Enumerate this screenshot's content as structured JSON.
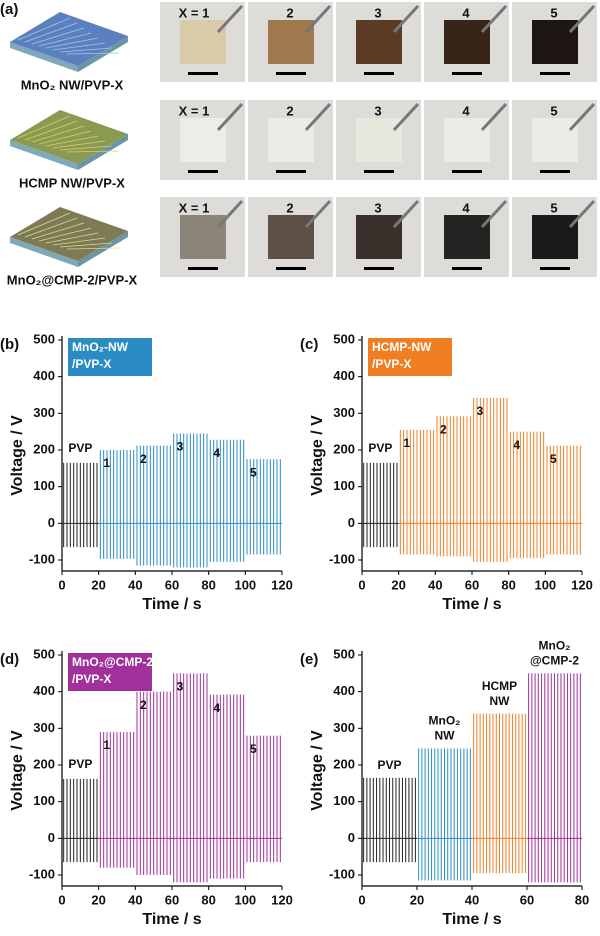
{
  "panel_a": {
    "label": "(a)",
    "rows": [
      {
        "name": "MnO₂ NW/PVP-X",
        "samples": [
          "X = 1",
          "2",
          "3",
          "4",
          "5"
        ]
      },
      {
        "name": "HCMP NW/PVP-X",
        "samples": [
          "X = 1",
          "2",
          "3",
          "4",
          "5"
        ]
      },
      {
        "name": "MnO₂@CMP-2/PVP-X",
        "samples": [
          "X = 1",
          "2",
          "3",
          "4",
          "5"
        ]
      }
    ]
  },
  "chart_data": [
    {
      "type": "pulse",
      "panel": "(b)",
      "legend": [
        "MnO₂-NW",
        "/PVP-X"
      ],
      "legend_color": "#2b8cc4",
      "xlabel": "Time / s",
      "ylabel": "Voltage / V",
      "xlim": [
        0,
        120
      ],
      "xticks": [
        0,
        20,
        40,
        60,
        80,
        100,
        120
      ],
      "ylim": [
        -130,
        500
      ],
      "yticks": [
        -100,
        0,
        100,
        200,
        300,
        400,
        500
      ],
      "series": [
        {
          "label": [
            "PVP"
          ],
          "color": "#222222",
          "x": [
            0,
            20
          ],
          "values": [
            165,
            -65
          ]
        },
        {
          "label": [
            "1"
          ],
          "color": "#2b8cc4",
          "x": [
            20,
            40
          ],
          "values": [
            200,
            -97
          ]
        },
        {
          "label": [
            "2"
          ],
          "color": "#2b8cc4",
          "x": [
            40,
            60
          ],
          "values": [
            212,
            -115
          ]
        },
        {
          "label": [
            "3"
          ],
          "color": "#2b8cc4",
          "x": [
            60,
            80
          ],
          "values": [
            245,
            -120
          ]
        },
        {
          "label": [
            "4"
          ],
          "color": "#2b8cc4",
          "x": [
            80,
            100
          ],
          "values": [
            228,
            -105
          ]
        },
        {
          "label": [
            "5"
          ],
          "color": "#2b8cc4",
          "x": [
            100,
            120
          ],
          "values": [
            175,
            -85
          ]
        }
      ]
    },
    {
      "type": "pulse",
      "panel": "(c)",
      "legend": [
        "HCMP-NW",
        "/PVP-X"
      ],
      "legend_color": "#f07f24",
      "xlabel": "Time / s",
      "ylabel": "Voltage / V",
      "xlim": [
        0,
        120
      ],
      "xticks": [
        0,
        20,
        40,
        60,
        80,
        100,
        120
      ],
      "ylim": [
        -130,
        500
      ],
      "yticks": [
        -100,
        0,
        100,
        200,
        300,
        400,
        500
      ],
      "series": [
        {
          "label": [
            "PVP"
          ],
          "color": "#222222",
          "x": [
            0,
            20
          ],
          "values": [
            165,
            -65
          ]
        },
        {
          "label": [
            "1"
          ],
          "color": "#f07f24",
          "x": [
            20,
            40
          ],
          "values": [
            255,
            -85
          ]
        },
        {
          "label": [
            "2"
          ],
          "color": "#f07f24",
          "x": [
            40,
            60
          ],
          "values": [
            292,
            -90
          ]
        },
        {
          "label": [
            "3"
          ],
          "color": "#f07f24",
          "x": [
            60,
            80
          ],
          "values": [
            342,
            -105
          ]
        },
        {
          "label": [
            "4"
          ],
          "color": "#f07f24",
          "x": [
            80,
            100
          ],
          "values": [
            250,
            -95
          ]
        },
        {
          "label": [
            "5"
          ],
          "color": "#f07f24",
          "x": [
            100,
            120
          ],
          "values": [
            212,
            -85
          ]
        }
      ]
    },
    {
      "type": "pulse",
      "panel": "(d)",
      "legend": [
        "MnO₂@CMP-2",
        "/PVP-X"
      ],
      "legend_color": "#a0309a",
      "xlabel": "Time / s",
      "ylabel": "Voltage / V",
      "xlim": [
        0,
        120
      ],
      "xticks": [
        0,
        20,
        40,
        60,
        80,
        100,
        120
      ],
      "ylim": [
        -130,
        500
      ],
      "yticks": [
        -100,
        0,
        100,
        200,
        300,
        400,
        500
      ],
      "series": [
        {
          "label": [
            "PVP"
          ],
          "color": "#222222",
          "x": [
            0,
            20
          ],
          "values": [
            162,
            -65
          ]
        },
        {
          "label": [
            "1"
          ],
          "color": "#a0309a",
          "x": [
            20,
            40
          ],
          "values": [
            290,
            -80
          ]
        },
        {
          "label": [
            "2"
          ],
          "color": "#a0309a",
          "x": [
            40,
            60
          ],
          "values": [
            400,
            -100
          ]
        },
        {
          "label": [
            "3"
          ],
          "color": "#a0309a",
          "x": [
            60,
            80
          ],
          "values": [
            450,
            -120
          ]
        },
        {
          "label": [
            "4"
          ],
          "color": "#a0309a",
          "x": [
            80,
            100
          ],
          "values": [
            392,
            -110
          ]
        },
        {
          "label": [
            "5"
          ],
          "color": "#a0309a",
          "x": [
            100,
            120
          ],
          "values": [
            280,
            -65
          ]
        }
      ]
    },
    {
      "type": "pulse",
      "panel": "(e)",
      "xlabel": "Time / s",
      "ylabel": "Voltage / V",
      "xlim": [
        0,
        80
      ],
      "xticks": [
        0,
        20,
        40,
        60,
        80
      ],
      "ylim": [
        -130,
        500
      ],
      "yticks": [
        -100,
        0,
        100,
        200,
        300,
        400,
        500
      ],
      "series": [
        {
          "label": [
            "PVP"
          ],
          "color": "#222222",
          "x": [
            0,
            20
          ],
          "values": [
            165,
            -65
          ]
        },
        {
          "label": [
            "MnO₂",
            "NW"
          ],
          "color": "#2b8cc4",
          "x": [
            20,
            40
          ],
          "values": [
            245,
            -115
          ]
        },
        {
          "label": [
            "HCMP",
            "NW"
          ],
          "color": "#f07f24",
          "x": [
            40,
            60
          ],
          "values": [
            340,
            -95
          ]
        },
        {
          "label": [
            "MnO₂",
            "@CMP-2"
          ],
          "color": "#a0309a",
          "x": [
            60,
            80
          ],
          "values": [
            450,
            -120
          ]
        }
      ]
    }
  ]
}
